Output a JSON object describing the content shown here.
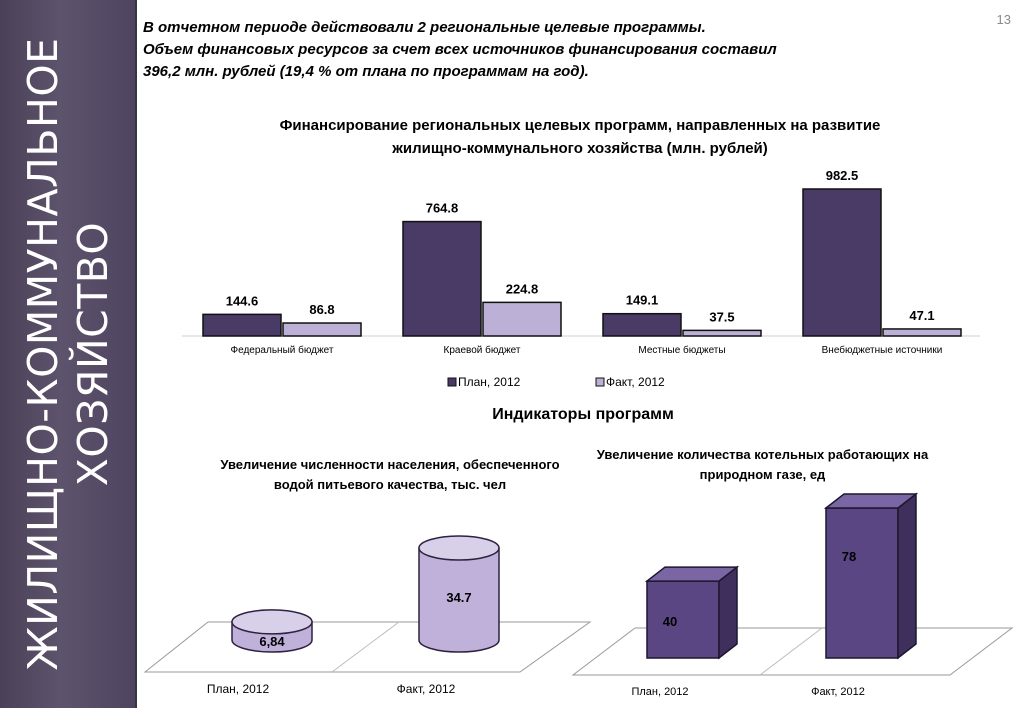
{
  "sidebar": {
    "line1": "ЖИЛИЩНО-КОММУНАЛЬНОЕ",
    "line2": "ХОЗЯЙСТВО"
  },
  "slide_number": "13",
  "intro": {
    "line1": "В отчетном периоде действовали 2 региональные целевые программы.",
    "line2": "Объем финансовых ресурсов за счет всех источников  финансирования составил",
    "line3": "396,2 млн. рублей (19,4 % от плана по программам на год)."
  },
  "indicators_heading": "Индикаторы программ",
  "colors": {
    "plan": "#4a3b66",
    "fact": "#bdb0d6",
    "purple_3d": "#5b4684",
    "cyl": "#bfb1d9"
  },
  "chart_data": [
    {
      "type": "bar",
      "title": "Финансирование региональных целевых программ, направленных на развитие жилищно-коммунального хозяйства (млн. рублей)",
      "title_line1": "Финансирование региональных целевых программ, направленных на развитие",
      "title_line2": "жилищно-коммунального хозяйства (млн. рублей)",
      "categories": [
        "Федеральный бюджет",
        "Краевой бюджет",
        "Местные бюджеты",
        "Внебюджетные источники"
      ],
      "series": [
        {
          "name": "План, 2012",
          "values": [
            144.6,
            764.8,
            149.1,
            982.5
          ],
          "labels": [
            "144.6",
            "764.8",
            "149.1",
            "982.5"
          ]
        },
        {
          "name": "Факт, 2012",
          "values": [
            86.8,
            224.8,
            37.5,
            47.1
          ],
          "labels": [
            "86.8",
            "224.8",
            "37.5",
            "47.1"
          ]
        }
      ],
      "ylim": [
        0,
        1000
      ],
      "legend": "bottom",
      "grid": false
    },
    {
      "type": "bar",
      "style": "3d-cylinder",
      "title": "Увеличение численности населения, обеспеченного водой питьевого качества, тыс. чел",
      "title_line1": "Увеличение численности населения, обеспеченного",
      "title_line2": "водой питьевого качества, тыс. чел",
      "categories": [
        "План, 2012",
        "Факт, 2012"
      ],
      "values": [
        6.84,
        34.7
      ],
      "labels": [
        "6,84",
        "34.7"
      ],
      "ylim": [
        0,
        40
      ]
    },
    {
      "type": "bar",
      "style": "3d-box",
      "title": "Увеличение количества котельных работающих на природном газе, ед",
      "title_line1": "Увеличение количества котельных работающих на",
      "title_line2": "природном газе, ед",
      "categories": [
        "План, 2012",
        "Факт, 2012"
      ],
      "values": [
        40,
        78
      ],
      "labels": [
        "40",
        "78"
      ],
      "ylim": [
        0,
        90
      ]
    }
  ]
}
